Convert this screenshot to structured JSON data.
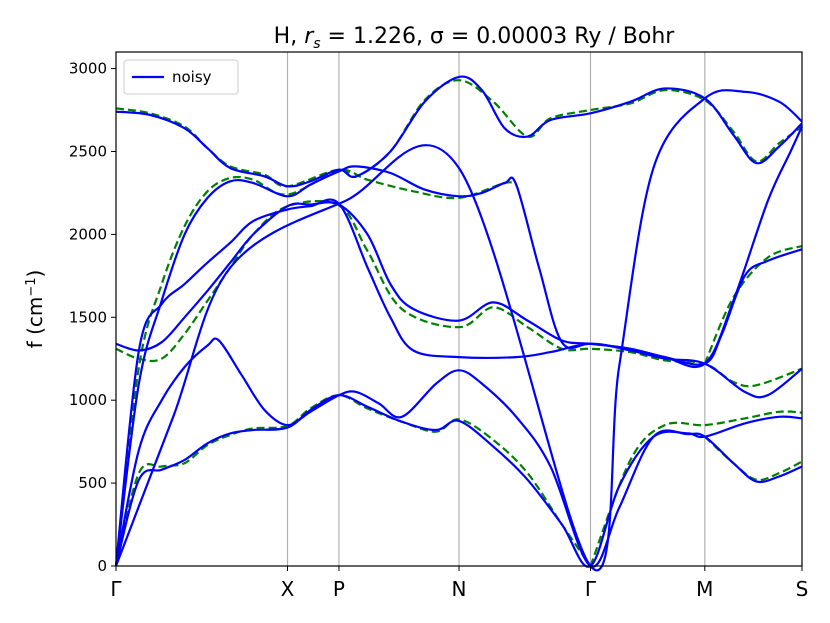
{
  "chart_data": {
    "type": "line",
    "title_prefix": "H, ",
    "title_math": "r",
    "title_sub": "s",
    "title_suffix": " = 1.226, σ = 0.00003 Ry / Bohr",
    "ylabel": "f (cm",
    "ylabel_sup": "−1",
    "ylabel_close": ")",
    "ylim": [
      0,
      3100
    ],
    "yticks": [
      0,
      500,
      1000,
      1500,
      2000,
      2500,
      3000
    ],
    "xlim": [
      0,
      6.0
    ],
    "xticks": [
      {
        "label": "Γ",
        "x": 0.0
      },
      {
        "label": "X",
        "x": 1.5
      },
      {
        "label": "P",
        "x": 1.95
      },
      {
        "label": "N",
        "x": 3.0
      },
      {
        "label": "Γ",
        "x": 4.15
      },
      {
        "label": "M",
        "x": 5.15
      },
      {
        "label": "S",
        "x": 6.0
      }
    ],
    "vlines": [
      1.5,
      1.95,
      3.0,
      4.15,
      5.15
    ],
    "grid": "vertical at high-symmetry points",
    "legend": {
      "placement": "top-left",
      "label": "noisy",
      "color": "#0000ff"
    },
    "colors": {
      "noisy": "#0000ff",
      "reference": "#008000",
      "vline": "#b0b0b0"
    },
    "series": [
      {
        "name": "noisy",
        "style": "solid",
        "color": "#0000ff",
        "bands": [
          [
            [
              0,
              0
            ],
            [
              0.2,
              520
            ],
            [
              0.4,
              580
            ],
            [
              0.6,
              640
            ],
            [
              0.8,
              740
            ],
            [
              1.0,
              800
            ],
            [
              1.2,
              820
            ],
            [
              1.5,
              835
            ],
            [
              1.7,
              940
            ],
            [
              1.95,
              1030
            ],
            [
              2.2,
              960
            ],
            [
              2.5,
              870
            ],
            [
              2.8,
              820
            ],
            [
              3.0,
              875
            ],
            [
              3.3,
              720
            ],
            [
              3.6,
              520
            ],
            [
              3.9,
              250
            ],
            [
              4.15,
              0
            ],
            [
              4.4,
              480
            ],
            [
              4.7,
              780
            ],
            [
              5.0,
              800
            ],
            [
              5.15,
              780
            ],
            [
              5.5,
              860
            ],
            [
              5.8,
              900
            ],
            [
              6.0,
              890
            ]
          ],
          [
            [
              0,
              0
            ],
            [
              0.2,
              700
            ],
            [
              0.4,
              1000
            ],
            [
              0.6,
              1200
            ],
            [
              0.8,
              1330
            ],
            [
              0.9,
              1360
            ],
            [
              1.1,
              1150
            ],
            [
              1.3,
              940
            ],
            [
              1.5,
              850
            ],
            [
              1.7,
              930
            ],
            [
              1.95,
              1030
            ],
            [
              2.1,
              1050
            ],
            [
              2.3,
              980
            ],
            [
              2.5,
              900
            ],
            [
              2.8,
              1100
            ],
            [
              3.0,
              1180
            ],
            [
              3.2,
              1100
            ],
            [
              3.5,
              900
            ],
            [
              3.8,
              600
            ],
            [
              4.15,
              0
            ],
            [
              4.4,
              350
            ],
            [
              4.7,
              780
            ],
            [
              5.0,
              795
            ],
            [
              5.15,
              780
            ],
            [
              5.4,
              620
            ],
            [
              5.6,
              510
            ],
            [
              5.8,
              540
            ],
            [
              6.0,
              600
            ]
          ],
          [
            [
              0,
              0
            ],
            [
              0.2,
              1300
            ],
            [
              0.4,
              1580
            ],
            [
              0.6,
              1700
            ],
            [
              0.8,
              1830
            ],
            [
              1.0,
              1950
            ],
            [
              1.2,
              2080
            ],
            [
              1.5,
              2150
            ],
            [
              1.7,
              2170
            ],
            [
              1.95,
              2185
            ],
            [
              2.2,
              1800
            ],
            [
              2.4,
              1500
            ],
            [
              2.6,
              1300
            ],
            [
              3.0,
              1260
            ],
            [
              3.5,
              1260
            ],
            [
              3.8,
              1290
            ],
            [
              4.15,
              1340
            ],
            [
              4.5,
              1300
            ],
            [
              4.8,
              1250
            ],
            [
              5.15,
              1220
            ],
            [
              5.5,
              1050
            ],
            [
              5.7,
              1030
            ],
            [
              6.0,
              1190
            ]
          ],
          [
            [
              0,
              1340
            ],
            [
              0.2,
              1300
            ],
            [
              0.4,
              1350
            ],
            [
              0.6,
              1500
            ],
            [
              0.8,
              1660
            ],
            [
              1.0,
              1830
            ],
            [
              1.2,
              2000
            ],
            [
              1.5,
              2170
            ],
            [
              1.7,
              2180
            ],
            [
              1.95,
              2180
            ],
            [
              2.2,
              2000
            ],
            [
              2.4,
              1700
            ],
            [
              2.6,
              1550
            ],
            [
              3.0,
              1480
            ],
            [
              3.3,
              1590
            ],
            [
              3.6,
              1480
            ],
            [
              3.9,
              1360
            ],
            [
              4.15,
              1340
            ],
            [
              4.5,
              1310
            ],
            [
              4.8,
              1260
            ],
            [
              5.15,
              1220
            ],
            [
              5.3,
              1400
            ],
            [
              5.5,
              1750
            ],
            [
              5.7,
              1840
            ],
            [
              6.0,
              1910
            ]
          ],
          [
            [
              0,
              0
            ],
            [
              0.2,
              1100
            ],
            [
              0.4,
              1600
            ],
            [
              0.6,
              2000
            ],
            [
              0.8,
              2220
            ],
            [
              1.0,
              2320
            ],
            [
              1.2,
              2310
            ],
            [
              1.5,
              2230
            ],
            [
              1.7,
              2300
            ],
            [
              1.95,
              2380
            ],
            [
              2.1,
              2410
            ],
            [
              2.4,
              2370
            ],
            [
              2.7,
              2270
            ],
            [
              3.0,
              2230
            ],
            [
              3.2,
              2250
            ],
            [
              3.4,
              2310
            ],
            [
              3.5,
              2300
            ],
            [
              3.7,
              1800
            ],
            [
              3.9,
              1350
            ],
            [
              4.15,
              1340
            ],
            [
              4.5,
              1310
            ],
            [
              4.8,
              1260
            ],
            [
              5.15,
              1220
            ],
            [
              5.4,
              1600
            ],
            [
              5.7,
              2200
            ],
            [
              5.9,
              2500
            ],
            [
              6.0,
              2650
            ]
          ],
          [
            [
              0,
              2740
            ],
            [
              0.3,
              2720
            ],
            [
              0.6,
              2640
            ],
            [
              0.8,
              2520
            ],
            [
              1.0,
              2400
            ],
            [
              1.3,
              2350
            ],
            [
              1.5,
              2290
            ],
            [
              1.7,
              2320
            ],
            [
              1.95,
              2390
            ],
            [
              2.1,
              2350
            ],
            [
              2.4,
              2500
            ],
            [
              2.7,
              2800
            ],
            [
              3.0,
              2950
            ],
            [
              3.2,
              2870
            ],
            [
              3.4,
              2640
            ],
            [
              3.6,
              2590
            ],
            [
              3.8,
              2690
            ],
            [
              4.15,
              2730
            ],
            [
              4.5,
              2800
            ],
            [
              4.8,
              2880
            ],
            [
              5.15,
              2820
            ],
            [
              5.4,
              2600
            ],
            [
              5.6,
              2430
            ],
            [
              5.8,
              2530
            ],
            [
              6.0,
              2670
            ]
          ],
          [
            [
              0,
              0
            ],
            [
              0.5,
              900
            ],
            [
              1.0,
              1800
            ],
            [
              2.0,
              2200
            ],
            [
              3.0,
              2400
            ],
            [
              4.15,
              0
            ],
            [
              4.4,
              1200
            ],
            [
              4.7,
              2400
            ],
            [
              5.15,
              2820
            ],
            [
              5.5,
              2860
            ],
            [
              5.8,
              2800
            ],
            [
              6.0,
              2680
            ]
          ]
        ]
      },
      {
        "name": "",
        "style": "dashed",
        "color": "#008000",
        "bands": [
          [
            [
              0,
              0
            ],
            [
              0.2,
              560
            ],
            [
              0.4,
              600
            ],
            [
              0.6,
              620
            ],
            [
              0.8,
              730
            ],
            [
              1.0,
              790
            ],
            [
              1.2,
              830
            ],
            [
              1.5,
              845
            ],
            [
              1.7,
              950
            ],
            [
              1.95,
              1030
            ],
            [
              2.2,
              950
            ],
            [
              2.5,
              870
            ],
            [
              2.8,
              810
            ],
            [
              3.0,
              885
            ],
            [
              3.3,
              760
            ],
            [
              3.6,
              560
            ],
            [
              3.9,
              250
            ],
            [
              4.15,
              0
            ]
          ],
          [
            [
              4.15,
              0
            ],
            [
              4.5,
              640
            ],
            [
              4.8,
              850
            ],
            [
              5.15,
              850
            ],
            [
              5.5,
              890
            ],
            [
              5.8,
              930
            ],
            [
              6.0,
              925
            ]
          ],
          [
            [
              0,
              1310
            ],
            [
              0.2,
              1250
            ],
            [
              0.4,
              1250
            ],
            [
              0.6,
              1400
            ],
            [
              0.8,
              1600
            ],
            [
              1.0,
              1800
            ],
            [
              1.2,
              2000
            ],
            [
              1.5,
              2170
            ],
            [
              1.95,
              2175
            ],
            [
              2.2,
              1900
            ],
            [
              2.5,
              1550
            ],
            [
              3.0,
              1440
            ],
            [
              3.3,
              1560
            ],
            [
              3.6,
              1440
            ],
            [
              3.9,
              1310
            ],
            [
              4.15,
              1310
            ],
            [
              4.5,
              1290
            ],
            [
              4.8,
              1240
            ],
            [
              5.15,
              1220
            ],
            [
              5.4,
              1110
            ],
            [
              5.6,
              1090
            ],
            [
              6.0,
              1190
            ]
          ],
          [
            [
              0,
              0
            ],
            [
              0.2,
              1200
            ],
            [
              0.4,
              1700
            ],
            [
              0.6,
              2050
            ],
            [
              0.8,
              2260
            ],
            [
              1.0,
              2340
            ],
            [
              1.2,
              2330
            ],
            [
              1.5,
              2240
            ],
            [
              1.95,
              2390
            ],
            [
              2.1,
              2350
            ],
            [
              2.4,
              2500
            ],
            [
              2.7,
              2810
            ],
            [
              3.0,
              2930
            ],
            [
              3.3,
              2800
            ],
            [
              3.6,
              2590
            ],
            [
              3.8,
              2700
            ],
            [
              4.15,
              2750
            ],
            [
              4.5,
              2790
            ],
            [
              4.8,
              2870
            ],
            [
              5.15,
              2810
            ],
            [
              5.4,
              2620
            ],
            [
              5.6,
              2440
            ],
            [
              5.8,
              2550
            ],
            [
              6.0,
              2650
            ]
          ],
          [
            [
              0,
              2760
            ],
            [
              0.3,
              2730
            ],
            [
              0.6,
              2650
            ],
            [
              0.8,
              2520
            ],
            [
              1.0,
              2410
            ],
            [
              1.3,
              2360
            ],
            [
              1.5,
              2290
            ],
            [
              1.95,
              2390
            ],
            [
              2.2,
              2330
            ],
            [
              2.6,
              2260
            ],
            [
              3.0,
              2220
            ],
            [
              3.4,
              2310
            ],
            [
              3.5,
              2300
            ]
          ],
          [
            [
              5.15,
              1220
            ],
            [
              5.4,
              1620
            ],
            [
              5.7,
              1860
            ],
            [
              6.0,
              1930
            ]
          ],
          [
            [
              5.15,
              780
            ],
            [
              5.4,
              620
            ],
            [
              5.6,
              520
            ],
            [
              5.8,
              560
            ],
            [
              6.0,
              630
            ]
          ]
        ]
      }
    ]
  }
}
